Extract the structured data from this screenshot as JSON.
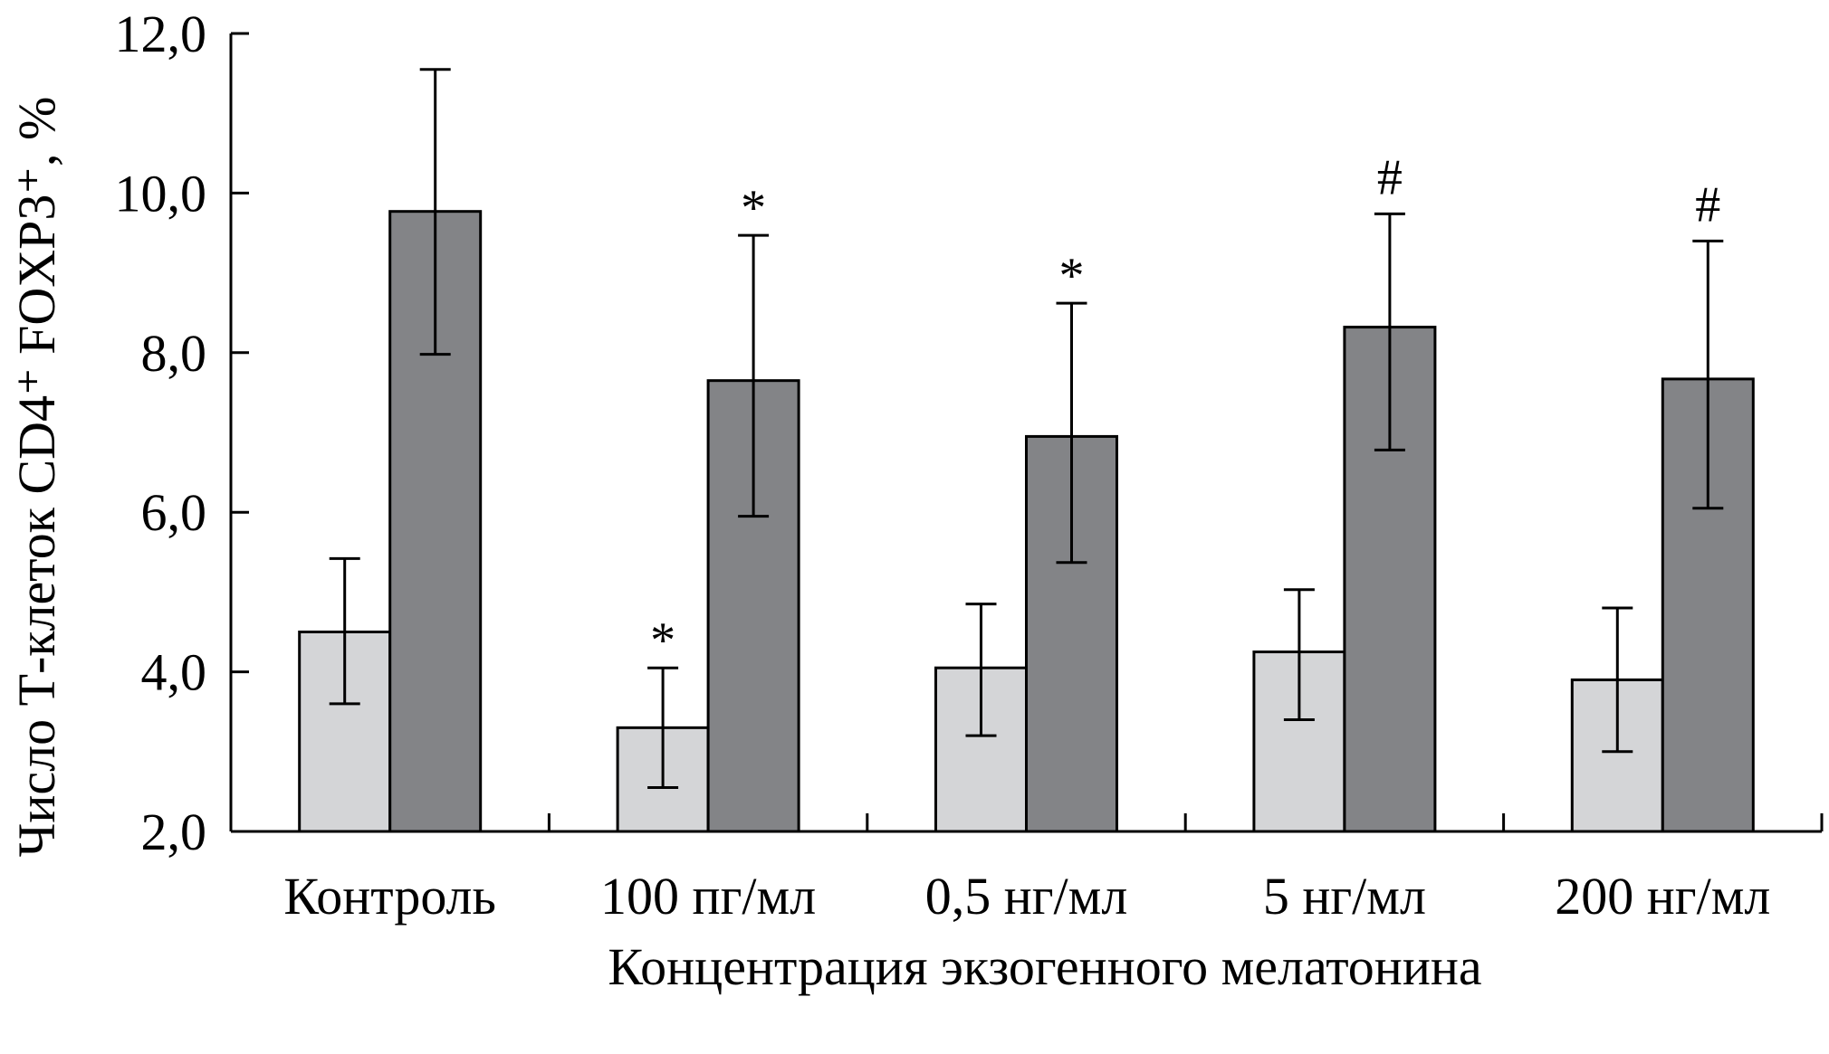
{
  "chart_data": {
    "type": "bar",
    "title": "",
    "xlabel": "Концентрация экзогенного мелатонина",
    "ylabel": "Число Т-клеток CD4⁺ FOXP3⁺, %",
    "ylim": [
      2.0,
      12.0
    ],
    "yticks": [
      "2,0",
      "4,0",
      "6,0",
      "8,0",
      "10,0",
      "12,0"
    ],
    "ytick_values": [
      2,
      4,
      6,
      8,
      10,
      12
    ],
    "grid": false,
    "legend": "none",
    "categories": [
      "Контроль",
      "100 пг/мл",
      "0,5 нг/мл",
      "5 нг/мл",
      "200 нг/мл"
    ],
    "series": [
      {
        "color": "#d4d5d7",
        "values": [
          4.5,
          3.3,
          4.05,
          4.25,
          3.9
        ],
        "err_low": [
          3.6,
          2.55,
          3.2,
          3.4,
          3.0
        ],
        "err_high": [
          5.42,
          4.05,
          4.85,
          5.03,
          4.8
        ],
        "markers": [
          "",
          "*",
          "",
          "",
          ""
        ]
      },
      {
        "color": "#838487",
        "values": [
          9.77,
          7.65,
          6.95,
          8.32,
          7.67
        ],
        "err_low": [
          7.98,
          5.95,
          5.37,
          6.78,
          6.05
        ],
        "err_high": [
          11.55,
          9.47,
          8.62,
          9.74,
          9.4
        ],
        "markers": [
          "",
          "*",
          "*",
          "#",
          "#"
        ]
      }
    ]
  }
}
